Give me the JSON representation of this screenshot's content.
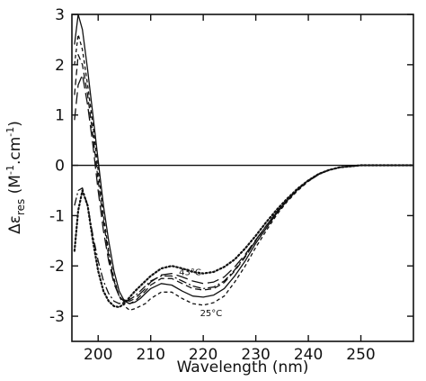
{
  "chart_data": {
    "type": "line",
    "xlabel": "Wavelength (nm)",
    "ylabel": "Δε_res (M⁻¹·cm⁻¹)",
    "ylabel_parts": {
      "symbol": "Δε",
      "sub": "res",
      "units_open": " (M",
      "exp1": "-1",
      "mid": ".cm",
      "exp2": "-1",
      "units_close": ")"
    },
    "xlim": [
      195,
      260
    ],
    "ylim": [
      -3.5,
      3
    ],
    "x_ticks": [
      200,
      210,
      220,
      230,
      240,
      250
    ],
    "y_ticks": [
      3,
      2,
      1,
      0,
      -1,
      -2,
      -3
    ],
    "zero_line": true,
    "grid": false,
    "legend": "none",
    "annotations": [
      {
        "text": "43°C",
        "x": 217.5,
        "y": -2.18
      },
      {
        "text": "25°C",
        "x": 221.5,
        "y": -3.0
      }
    ],
    "series": [
      {
        "style": "solid",
        "x": [
          195.5,
          196.2,
          197,
          198,
          199,
          200,
          201,
          202,
          203,
          204,
          205,
          206,
          207,
          208,
          209,
          210,
          212,
          214,
          216,
          218,
          220,
          222,
          224,
          226,
          228,
          230,
          232,
          234,
          236,
          238,
          240,
          242,
          244,
          246,
          248,
          250,
          253,
          256,
          260
        ],
        "y": [
          2.4,
          3.0,
          2.7,
          1.9,
          1.0,
          0.1,
          -0.8,
          -1.5,
          -2.1,
          -2.5,
          -2.7,
          -2.75,
          -2.72,
          -2.65,
          -2.55,
          -2.45,
          -2.35,
          -2.38,
          -2.5,
          -2.6,
          -2.62,
          -2.58,
          -2.45,
          -2.2,
          -1.9,
          -1.55,
          -1.25,
          -0.95,
          -0.7,
          -0.48,
          -0.3,
          -0.17,
          -0.09,
          -0.04,
          -0.02,
          0.0,
          0.0,
          0.0,
          0.0
        ]
      },
      {
        "style": "dashed",
        "x": [
          195.5,
          196.2,
          197,
          198,
          199,
          200,
          201,
          202,
          203,
          204,
          205,
          206,
          207,
          208,
          209,
          210,
          212,
          214,
          216,
          218,
          220,
          222,
          224,
          226,
          228,
          230,
          232,
          234,
          236,
          238,
          240,
          242,
          244,
          246,
          248,
          250,
          253,
          256,
          260
        ],
        "y": [
          1.4,
          2.2,
          2.0,
          1.4,
          0.6,
          -0.3,
          -1.1,
          -1.8,
          -2.3,
          -2.6,
          -2.72,
          -2.75,
          -2.7,
          -2.6,
          -2.5,
          -2.38,
          -2.25,
          -2.25,
          -2.35,
          -2.45,
          -2.48,
          -2.45,
          -2.33,
          -2.1,
          -1.82,
          -1.5,
          -1.2,
          -0.92,
          -0.68,
          -0.47,
          -0.3,
          -0.17,
          -0.09,
          -0.04,
          -0.02,
          0.0,
          0.0,
          0.0,
          0.0
        ]
      },
      {
        "style": "long-dash",
        "x": [
          195.5,
          196.2,
          197,
          198,
          199,
          200,
          201,
          202,
          203,
          204,
          205,
          206,
          207,
          208,
          209,
          210,
          212,
          214,
          216,
          218,
          220,
          222,
          224,
          226,
          228,
          230,
          232,
          234,
          236,
          238,
          240,
          242,
          244,
          246,
          248,
          250,
          253,
          256,
          260
        ],
        "y": [
          0.9,
          1.6,
          1.8,
          1.2,
          0.4,
          -0.5,
          -1.3,
          -1.9,
          -2.35,
          -2.6,
          -2.68,
          -2.7,
          -2.65,
          -2.55,
          -2.45,
          -2.32,
          -2.18,
          -2.15,
          -2.22,
          -2.3,
          -2.35,
          -2.32,
          -2.22,
          -2.02,
          -1.77,
          -1.48,
          -1.2,
          -0.93,
          -0.69,
          -0.48,
          -0.31,
          -0.18,
          -0.09,
          -0.04,
          -0.02,
          0.0,
          0.0,
          0.0,
          0.0
        ]
      },
      {
        "style": "dash-dot",
        "x": [
          195.5,
          196.2,
          197,
          198,
          199,
          200,
          201,
          202,
          203,
          204,
          205,
          206,
          207,
          208,
          209,
          210,
          212,
          214,
          216,
          218,
          220,
          222,
          224,
          226,
          228,
          230,
          232,
          234,
          236,
          238,
          240,
          242,
          244,
          246,
          248,
          250,
          253,
          256,
          260
        ],
        "y": [
          -0.8,
          -0.5,
          -0.45,
          -0.8,
          -1.4,
          -1.9,
          -2.3,
          -2.55,
          -2.7,
          -2.75,
          -2.72,
          -2.67,
          -2.6,
          -2.5,
          -2.4,
          -2.3,
          -2.2,
          -2.2,
          -2.3,
          -2.4,
          -2.45,
          -2.42,
          -2.3,
          -2.08,
          -1.8,
          -1.5,
          -1.2,
          -0.93,
          -0.69,
          -0.48,
          -0.31,
          -0.18,
          -0.09,
          -0.04,
          -0.02,
          0.0,
          0.0,
          0.0,
          0.0
        ]
      },
      {
        "style": "dotted",
        "x": [
          195.5,
          196.2,
          197,
          198,
          199,
          200,
          201,
          202,
          203,
          204,
          205,
          206,
          207,
          208,
          209,
          210,
          212,
          214,
          216,
          218,
          220,
          222,
          224,
          226,
          228,
          230,
          232,
          234,
          236,
          238,
          240,
          242,
          244,
          246,
          248,
          250,
          253,
          256,
          260
        ],
        "y": [
          -1.7,
          -0.9,
          -0.5,
          -0.8,
          -1.5,
          -2.1,
          -2.5,
          -2.7,
          -2.8,
          -2.82,
          -2.75,
          -2.62,
          -2.5,
          -2.4,
          -2.3,
          -2.2,
          -2.05,
          -2.0,
          -2.05,
          -2.12,
          -2.15,
          -2.12,
          -2.02,
          -1.87,
          -1.65,
          -1.4,
          -1.13,
          -0.88,
          -0.66,
          -0.46,
          -0.3,
          -0.17,
          -0.09,
          -0.04,
          -0.02,
          0.0,
          0.0,
          0.0,
          0.0
        ]
      },
      {
        "style": "short-dash",
        "x": [
          195.5,
          196.2,
          197,
          198,
          199,
          200,
          201,
          202,
          203,
          204,
          205,
          206,
          207,
          208,
          209,
          210,
          212,
          214,
          216,
          218,
          220,
          222,
          224,
          226,
          228,
          230,
          232,
          234,
          236,
          238,
          240,
          242,
          244,
          246,
          248,
          250,
          253,
          256,
          260
        ],
        "y": [
          2.0,
          2.6,
          2.3,
          1.6,
          0.8,
          -0.1,
          -1.0,
          -1.7,
          -2.25,
          -2.6,
          -2.8,
          -2.88,
          -2.85,
          -2.8,
          -2.75,
          -2.65,
          -2.52,
          -2.52,
          -2.65,
          -2.75,
          -2.78,
          -2.73,
          -2.6,
          -2.32,
          -2.0,
          -1.63,
          -1.3,
          -0.98,
          -0.72,
          -0.5,
          -0.32,
          -0.18,
          -0.09,
          -0.04,
          -0.02,
          0.0,
          0.0,
          0.0,
          0.0
        ]
      }
    ]
  }
}
